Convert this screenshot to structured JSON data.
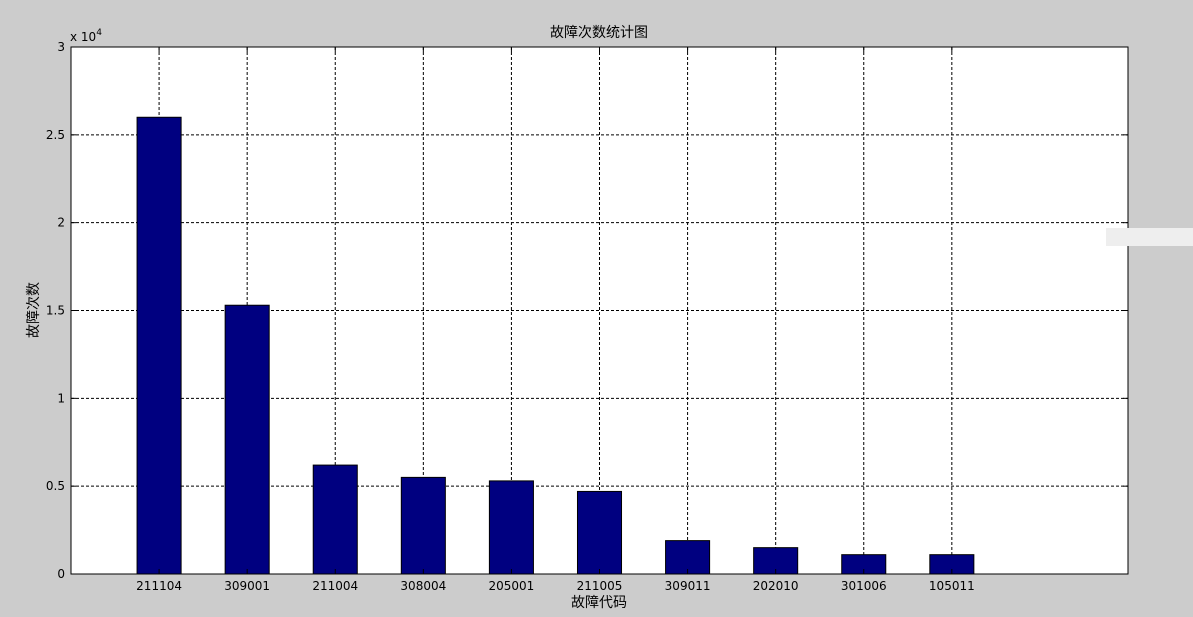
{
  "chart_data": {
    "type": "bar",
    "title": "故障次数统计图",
    "xlabel": "故障代码",
    "ylabel": "故障次数",
    "y_multiplier_label": "x 10",
    "y_multiplier_exponent": "4",
    "categories": [
      "211104",
      "309001",
      "211004",
      "308004",
      "205001",
      "211005",
      "309011",
      "202010",
      "301006",
      "105011"
    ],
    "values": [
      26000,
      15300,
      6200,
      5500,
      5300,
      4700,
      1900,
      1500,
      1100,
      1100
    ],
    "ylim": [
      0,
      30000
    ],
    "yticks": [
      0,
      5000,
      10000,
      15000,
      20000,
      25000,
      30000
    ],
    "ytick_labels": [
      "0",
      "0.5",
      "1",
      "1.5",
      "2",
      "2.5",
      "3"
    ],
    "x_slots": 12,
    "grid": true,
    "bar_color": "#000080",
    "axes_background": "#ffffff",
    "figure_background": "#cccccc"
  }
}
